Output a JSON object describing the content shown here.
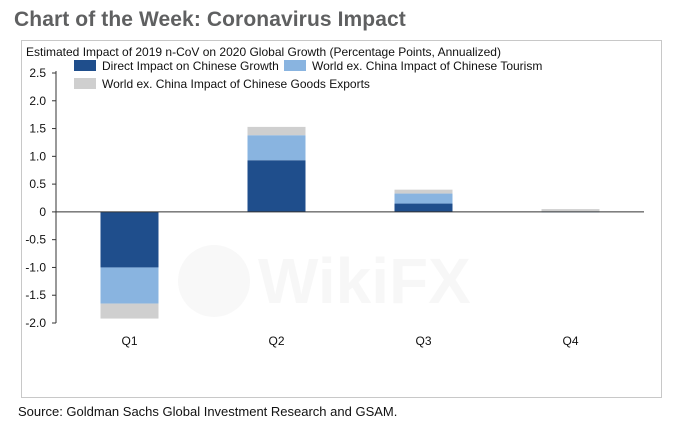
{
  "page": {
    "title": "Chart of the Week: Coronavirus Impact",
    "source": "Source: Goldman Sachs Global Investment Research and GSAM.",
    "watermark": "WikiFX"
  },
  "chart_data": {
    "type": "bar",
    "stacked": true,
    "title": "Estimated Impact of 2019 n-CoV on 2020 Global Growth (Percentage Points, Annualized)",
    "xlabel": "",
    "ylabel": "",
    "categories": [
      "Q1",
      "Q2",
      "Q3",
      "Q4"
    ],
    "ylim": [
      -2.0,
      2.5
    ],
    "yticks": [
      2.5,
      2.0,
      1.5,
      1.0,
      0.5,
      0,
      -0.5,
      -1.0,
      -1.5,
      -2.0
    ],
    "ytick_labels": [
      "2.5",
      "2.0",
      "1.5",
      "1.0",
      "0.5",
      "0",
      "-0.5",
      "-1.0",
      "-1.5",
      "-2.0"
    ],
    "grid": false,
    "legend_position": "top-left",
    "series": [
      {
        "name": "Direct Impact on Chinese Growth",
        "color": "#1f4e8c",
        "values": [
          -1.0,
          0.93,
          0.15,
          0.0
        ]
      },
      {
        "name": "World ex. China Impact of Chinese Tourism",
        "color": "#89b4e0",
        "values": [
          -0.65,
          0.45,
          0.18,
          0.01
        ]
      },
      {
        "name": "World ex. China Impact of Chinese Goods Exports",
        "color": "#cfcfcf",
        "values": [
          -0.27,
          0.15,
          0.07,
          0.04
        ]
      }
    ]
  }
}
